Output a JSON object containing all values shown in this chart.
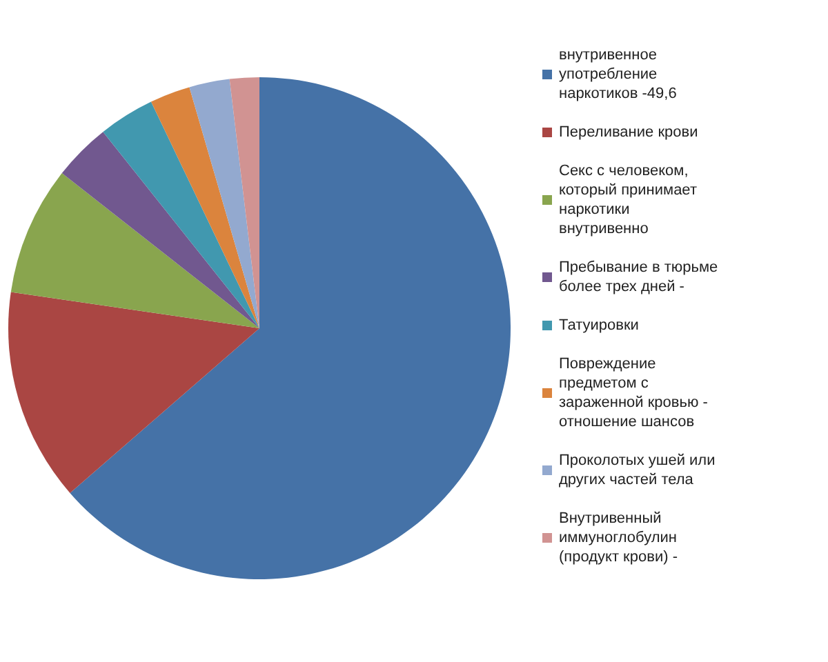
{
  "chart_data": {
    "type": "pie",
    "categories": [
      "внутривенное употребление наркотиков -49,6",
      "Переливание крови",
      "Секс с человеком, который принимает наркотики внутривенно",
      "Пребывание в тюрьме более трех дней -",
      "Татуировки",
      "Повреждение предметом с зараженной кровью - отношение шансов",
      "Проколотых ушей или других частей тела",
      "Внутривенный иммуноглобулин (продукт крови) -"
    ],
    "values": [
      63.6,
      13.7,
      8.3,
      3.7,
      3.6,
      2.6,
      2.6,
      1.9
    ],
    "colors": [
      "#4572a7",
      "#aa4643",
      "#89a54e",
      "#71588f",
      "#4198af",
      "#db843d",
      "#93a9cf",
      "#d19392"
    ],
    "legend": "right"
  }
}
